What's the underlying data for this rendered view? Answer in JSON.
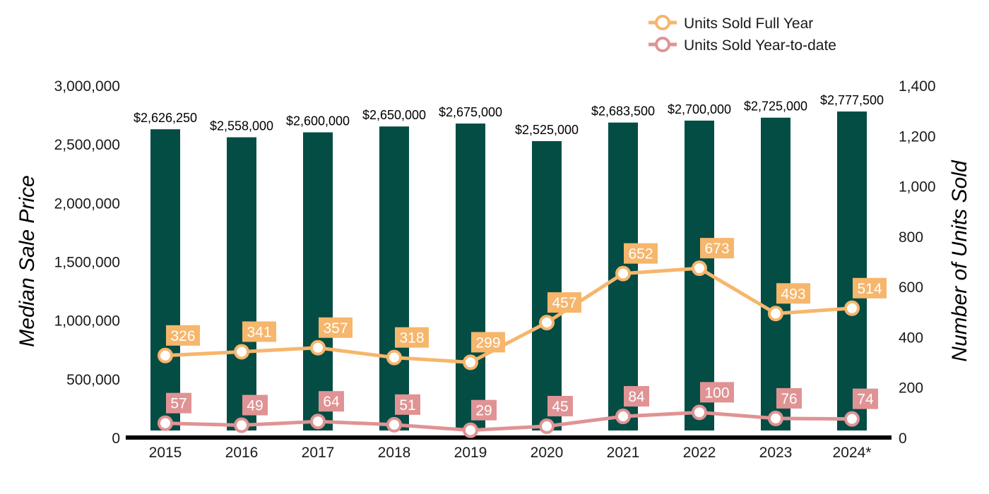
{
  "chart_data": {
    "type": "bar",
    "categories": [
      "2015",
      "2016",
      "2017",
      "2018",
      "2019",
      "2020",
      "2021",
      "2022",
      "2023",
      "2024*"
    ],
    "ylabel": "Median Sale Price",
    "y2label": "Number of Units Sold",
    "ylim": [
      0,
      3000000
    ],
    "y2lim": [
      0,
      1400
    ],
    "y_ticks": [
      "0",
      "500,000",
      "1,000,000",
      "1,500,000",
      "2,000,000",
      "2,500,000",
      "3,000,000"
    ],
    "y_tick_values": [
      0,
      500000,
      1000000,
      1500000,
      2000000,
      2500000,
      3000000
    ],
    "y2_ticks": [
      "0",
      "200",
      "400",
      "600",
      "800",
      "1,000",
      "1,200",
      "1,400"
    ],
    "y2_tick_values": [
      0,
      200,
      400,
      600,
      800,
      1000,
      1200,
      1400
    ],
    "bars": {
      "name": "Median Sale Price",
      "color": "#034d44",
      "values": [
        2626250,
        2558000,
        2600000,
        2650000,
        2675000,
        2525000,
        2683500,
        2700000,
        2725000,
        2777500
      ],
      "labels": [
        "$2,626,250",
        "$2,558,000",
        "$2,600,000",
        "$2,650,000",
        "$2,675,000",
        "$2,525,000",
        "$2,683,500",
        "$2,700,000",
        "$2,725,000",
        "$2,777,500"
      ]
    },
    "series": [
      {
        "name": "Units Sold Full Year",
        "type": "line",
        "axis": "right",
        "color": "#f6b66c",
        "values": [
          326,
          341,
          357,
          318,
          299,
          457,
          652,
          673,
          493,
          514
        ],
        "labels": [
          "326",
          "341",
          "357",
          "318",
          "299",
          "457",
          "652",
          "673",
          "493",
          "514"
        ]
      },
      {
        "name": "Units Sold Year-to-date",
        "type": "line",
        "axis": "right",
        "color": "#e09394",
        "values": [
          57,
          49,
          64,
          51,
          29,
          45,
          84,
          100,
          76,
          74
        ],
        "labels": [
          "57",
          "49",
          "64",
          "51",
          "29",
          "45",
          "84",
          "100",
          "76",
          "74"
        ]
      }
    ],
    "legend": {
      "position": "top-right",
      "items": [
        "Units Sold Full Year",
        "Units Sold Year-to-date"
      ]
    }
  }
}
